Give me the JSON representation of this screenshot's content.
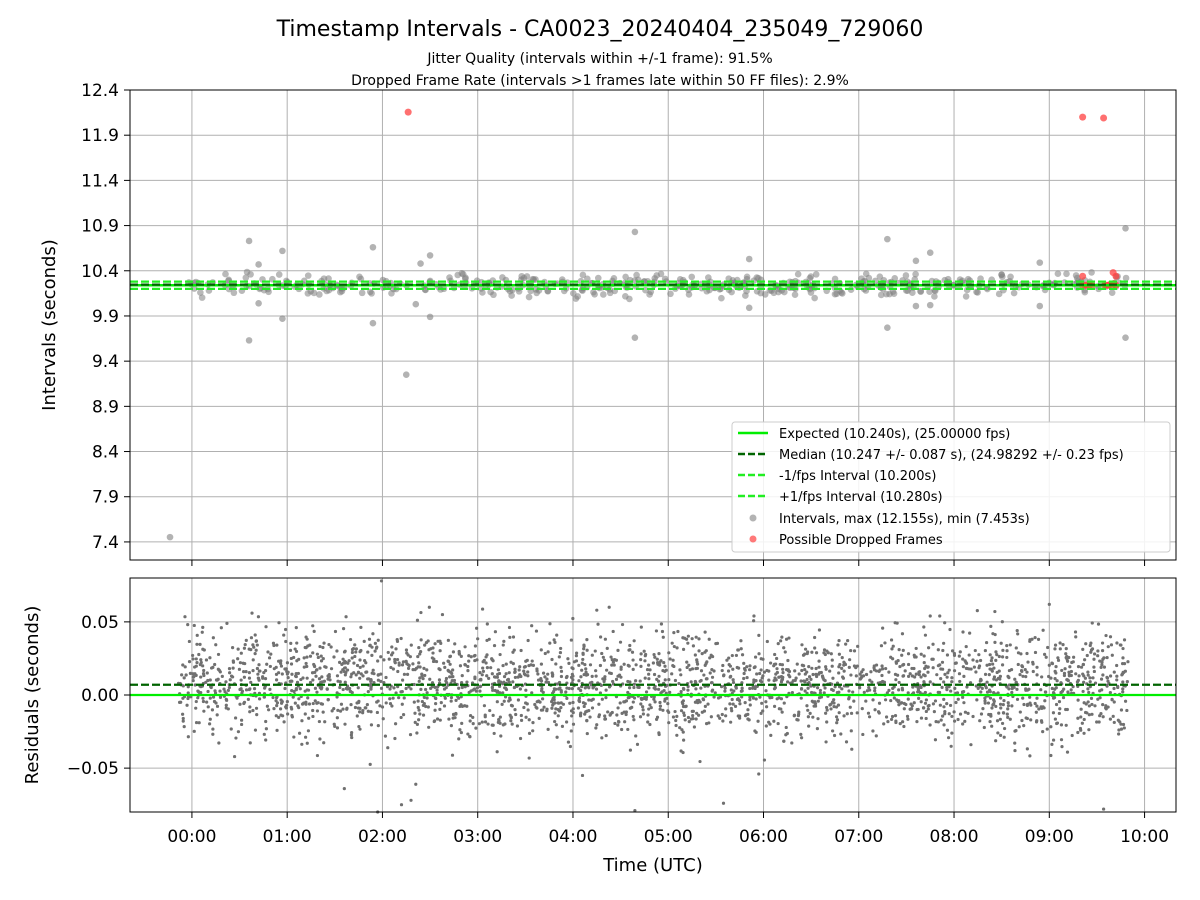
{
  "title": "Timestamp Intervals - CA0023_20240404_235049_729060",
  "subtitle_lines": [
    "Jitter Quality (intervals within +/-1 frame): 91.5%",
    "Dropped Frame Rate (intervals >1 frames late within 50 FF files): 2.9%"
  ],
  "chart_data": [
    {
      "type": "scatter",
      "panel": "top",
      "ylabel": "Intervals (seconds)",
      "ylim": [
        7.2,
        12.4
      ],
      "y_ticks": [
        "12.4",
        "11.9",
        "11.4",
        "10.9",
        "10.4",
        "9.9",
        "9.4",
        "8.9",
        "8.4",
        "7.9",
        "7.4"
      ],
      "grid": true,
      "legend_position": "lower right",
      "reference_lines": [
        {
          "name": "Expected (10.240s), (25.00000 fps)",
          "y": 10.24,
          "style": "solid",
          "color": "#00ee00"
        },
        {
          "name": "Median (10.247 +/- 0.087 s), (24.98292 +/- 0.23 fps)",
          "y": 10.247,
          "style": "dashed",
          "color": "#006400"
        },
        {
          "name": "-1/fps Interval (10.200s)",
          "y": 10.2,
          "style": "dashed",
          "color": "#22ee22"
        },
        {
          "name": "+1/fps Interval (10.280s)",
          "y": 10.28,
          "style": "dashed",
          "color": "#22ee22"
        }
      ],
      "series": [
        {
          "name": "Intervals, max (12.155s), min (7.453s)",
          "color": "#808080",
          "band": {
            "x_start": -0.05,
            "x_end": 9.83,
            "count": 450,
            "y_center": 10.24,
            "y_spread": 0.1,
            "seed": 7
          },
          "outliers": [
            [
              -0.23,
              7.453
            ],
            [
              0.6,
              10.73
            ],
            [
              0.6,
              9.63
            ],
            [
              0.7,
              10.47
            ],
            [
              0.7,
              10.04
            ],
            [
              0.95,
              10.62
            ],
            [
              0.95,
              9.87
            ],
            [
              1.9,
              10.66
            ],
            [
              1.9,
              9.82
            ],
            [
              2.25,
              9.25
            ],
            [
              2.4,
              10.48
            ],
            [
              2.5,
              10.57
            ],
            [
              2.5,
              9.89
            ],
            [
              2.35,
              10.03
            ],
            [
              4.65,
              10.83
            ],
            [
              4.65,
              9.66
            ],
            [
              5.85,
              10.53
            ],
            [
              5.85,
              9.99
            ],
            [
              7.3,
              10.75
            ],
            [
              7.3,
              9.77
            ],
            [
              7.6,
              10.51
            ],
            [
              7.75,
              10.6
            ],
            [
              7.6,
              10.01
            ],
            [
              7.75,
              10.02
            ],
            [
              8.9,
              10.49
            ],
            [
              8.9,
              10.01
            ],
            [
              9.8,
              10.87
            ],
            [
              9.8,
              9.66
            ]
          ]
        },
        {
          "name": "Possible Dropped Frames",
          "color": "#ff4040",
          "points": [
            [
              2.27,
              12.155
            ],
            [
              9.35,
              12.1
            ],
            [
              9.57,
              12.09
            ],
            [
              9.35,
              10.34
            ],
            [
              9.67,
              10.38
            ],
            [
              9.7,
              10.34
            ],
            [
              9.35,
              10.24
            ],
            [
              9.38,
              10.24
            ],
            [
              9.4,
              10.24
            ],
            [
              9.42,
              10.24
            ],
            [
              9.45,
              10.24
            ],
            [
              9.58,
              10.24
            ],
            [
              9.6,
              10.24
            ],
            [
              9.62,
              10.24
            ],
            [
              9.64,
              10.25
            ],
            [
              9.66,
              10.23
            ],
            [
              9.68,
              10.26
            ],
            [
              9.7,
              10.24
            ]
          ]
        }
      ]
    },
    {
      "type": "scatter",
      "panel": "bottom",
      "xlabel": "Time (UTC)",
      "ylabel": "Residuals (seconds)",
      "xlim": [
        -0.65,
        10.33
      ],
      "ylim": [
        -0.08,
        0.08
      ],
      "x_tick_positions": [
        0,
        1,
        2,
        3,
        4,
        5,
        6,
        7,
        8,
        9,
        10
      ],
      "x_ticks": [
        "00:00",
        "01:00",
        "02:00",
        "03:00",
        "04:00",
        "05:00",
        "06:00",
        "07:00",
        "08:00",
        "09:00",
        "10:00"
      ],
      "y_tick_positions": [
        0.05,
        0.0,
        -0.05
      ],
      "y_ticks": [
        "0.05",
        "0.00",
        "−0.05"
      ],
      "grid": true,
      "reference_lines": [
        {
          "name": "Expected",
          "y": 0.0,
          "style": "solid",
          "color": "#00ee00"
        },
        {
          "name": "Median",
          "y": 0.007,
          "style": "dashed",
          "color": "#006400"
        }
      ],
      "series": [
        {
          "name": "Residuals",
          "color": "#707070",
          "band": {
            "x_start": -0.15,
            "x_end": 9.83,
            "count": 2700,
            "y_center": 0.007,
            "y_spread": 0.018,
            "seed": 19
          },
          "outliers": [
            [
              1.99,
              0.078
            ],
            [
              1.95,
              -0.08
            ],
            [
              2.3,
              -0.072
            ],
            [
              2.2,
              -0.075
            ],
            [
              2.35,
              -0.061
            ],
            [
              1.6,
              -0.064
            ],
            [
              4.1,
              -0.055
            ],
            [
              4.65,
              -0.079
            ],
            [
              5.58,
              -0.074
            ],
            [
              5.95,
              -0.054
            ],
            [
              9.0,
              0.062
            ],
            [
              9.57,
              -0.078
            ],
            [
              4.25,
              0.058
            ],
            [
              4.38,
              0.06
            ],
            [
              2.63,
              0.055
            ],
            [
              5.9,
              0.054
            ],
            [
              7.75,
              0.054
            ],
            [
              7.85,
              0.054
            ]
          ]
        }
      ]
    }
  ]
}
